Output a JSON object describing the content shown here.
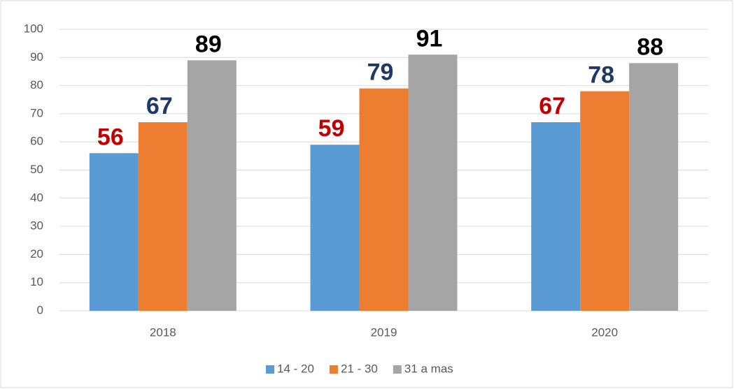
{
  "chart_data": {
    "type": "bar",
    "categories": [
      "2018",
      "2019",
      "2020"
    ],
    "series": [
      {
        "name": "14 - 20",
        "color": "#5b9bd5",
        "label_color": "#c00000",
        "values": [
          56,
          59,
          67
        ]
      },
      {
        "name": "21 - 30",
        "color": "#ed7d31",
        "label_color": "#1f3864",
        "values": [
          67,
          79,
          78
        ]
      },
      {
        "name": "31 a mas",
        "color": "#a5a5a5",
        "label_color": "#000000",
        "values": [
          89,
          91,
          88
        ]
      }
    ],
    "ylim": [
      0,
      100
    ],
    "yticks": [
      0,
      10,
      20,
      30,
      40,
      50,
      60,
      70,
      80,
      90,
      100
    ],
    "grid": true,
    "legend": "bottom"
  }
}
